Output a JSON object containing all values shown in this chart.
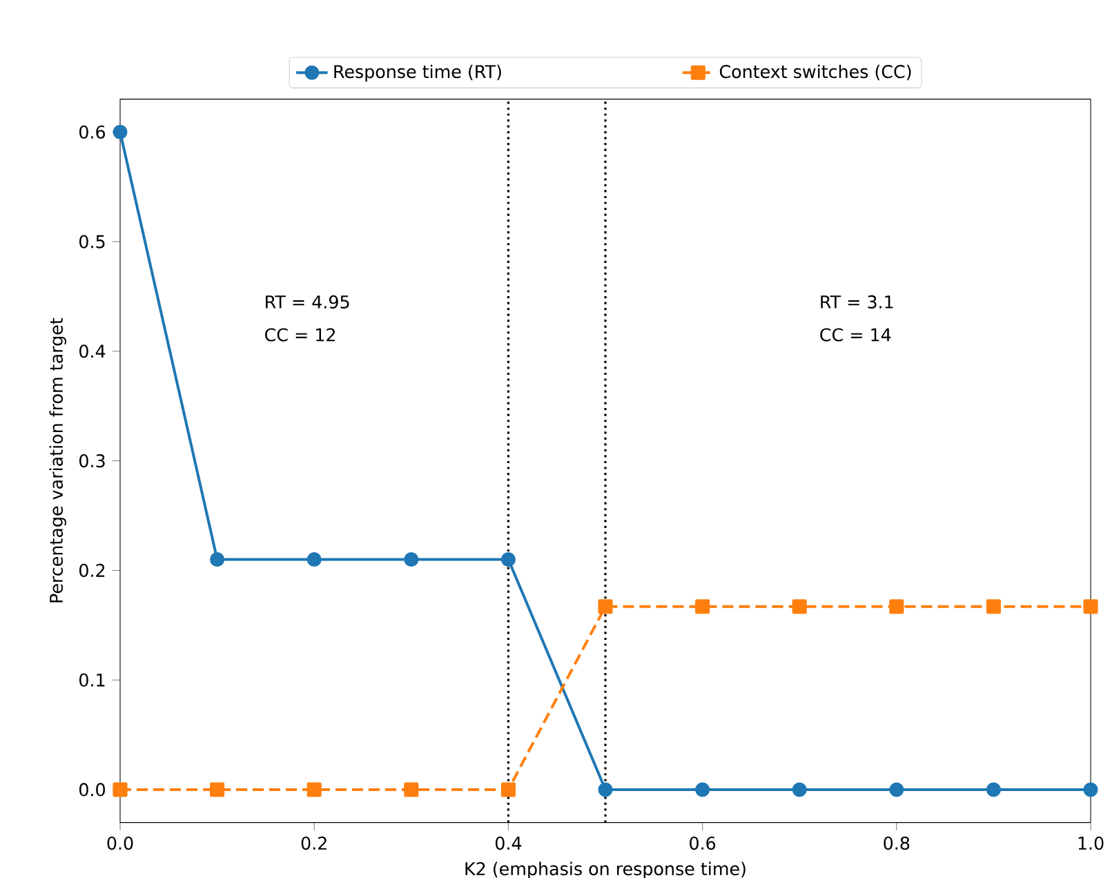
{
  "chart_data": {
    "type": "line",
    "xlabel": "K2 (emphasis on response time)",
    "ylabel": "Percentage variation from target",
    "x": [
      0.0,
      0.1,
      0.2,
      0.3,
      0.4,
      0.5,
      0.6,
      0.7,
      0.8,
      0.9,
      1.0
    ],
    "series": [
      {
        "name": "Response time (RT)",
        "color": "#1f77b4",
        "marker": "circle",
        "line_style": "solid",
        "values": [
          0.6,
          0.21,
          0.21,
          0.21,
          0.21,
          0,
          0,
          0,
          0,
          0,
          0
        ]
      },
      {
        "name": "Context switches (CC)",
        "color": "#ff7f0e",
        "marker": "square",
        "line_style": "dashed",
        "values": [
          0,
          0,
          0,
          0,
          0,
          0.167,
          0.167,
          0.167,
          0.167,
          0.167,
          0.167
        ]
      }
    ],
    "xlim": [
      0,
      1
    ],
    "ylim": [
      -0.03,
      0.63
    ],
    "xticks": [
      {
        "value": 0,
        "label": "0.0"
      },
      0.2,
      0.4,
      0.6,
      0.8,
      {
        "value": 1,
        "label": "1.0"
      }
    ],
    "yticks": [
      {
        "value": 0,
        "label": "0.0"
      },
      0.1,
      0.2,
      0.3,
      0.4,
      0.5,
      0.6
    ],
    "ref_lines": [
      {
        "axis": "x",
        "value": 0.4,
        "color": "#000000",
        "line_style": "dotted"
      },
      {
        "axis": "x",
        "value": 0.5,
        "color": "#000000",
        "line_style": "dotted"
      }
    ],
    "annotations": [
      "RT = 4.95",
      "CC = 12",
      "RT = 3.1",
      "CC = 14"
    ],
    "legend": "top",
    "grid": false
  }
}
